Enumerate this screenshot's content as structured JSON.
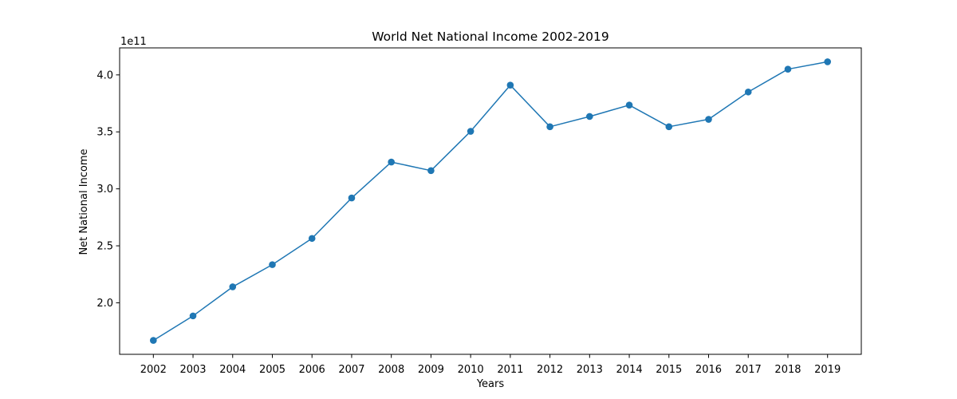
{
  "chart_data": {
    "type": "line",
    "title": "World Net National Income 2002-2019",
    "xlabel": "Years",
    "ylabel": "Net National Income",
    "y_offset_label": "1e11",
    "x": [
      "2002",
      "2003",
      "2004",
      "2005",
      "2006",
      "2007",
      "2008",
      "2009",
      "2010",
      "2011",
      "2012",
      "2013",
      "2014",
      "2015",
      "2016",
      "2017",
      "2018",
      "2019"
    ],
    "series": [
      {
        "values": [
          1.67,
          1.885,
          2.14,
          2.335,
          2.565,
          2.92,
          3.235,
          3.16,
          3.505,
          3.91,
          3.545,
          3.635,
          3.735,
          3.545,
          3.61,
          3.85,
          4.05,
          4.115
        ],
        "color": "#1f77b4",
        "marker": "circle"
      }
    ],
    "yticks": [
      "2.0",
      "2.5",
      "3.0",
      "3.5",
      "4.0"
    ],
    "ytick_values": [
      2.0,
      2.5,
      3.0,
      3.5,
      4.0
    ],
    "ylim": [
      1.548,
      4.237
    ],
    "grid": false
  }
}
